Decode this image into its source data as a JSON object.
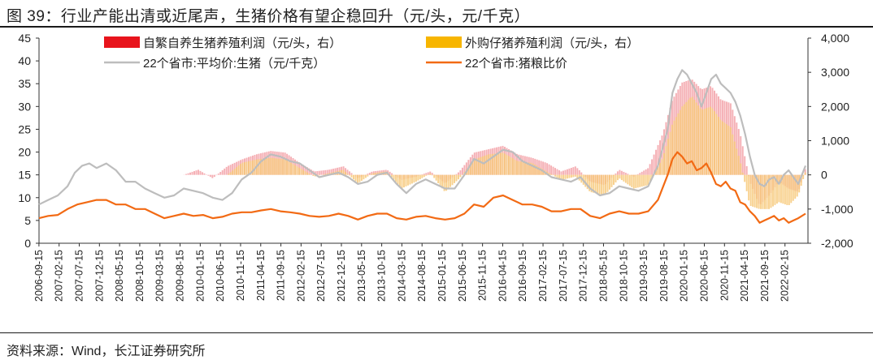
{
  "title": "图 39：行业产能出清或近尾声，生猪价格有望企稳回升（元/头，元/千克）",
  "source": "资料来源：Wind，长江证券研究所",
  "chart_data": {
    "type": "line+bar",
    "title": "行业产能出清或近尾声，生猪价格有望企稳回升",
    "left_axis": {
      "ylim": [
        0,
        45
      ],
      "ticks": [
        "0",
        "5",
        "10",
        "15",
        "20",
        "25",
        "30",
        "35",
        "40",
        "45"
      ],
      "units": "元/千克"
    },
    "right_axis": {
      "ylim": [
        -2000,
        4000
      ],
      "ticks": [
        "-2,000",
        "-1,000",
        "0",
        "1,000",
        "2,000",
        "3,000",
        "4,000"
      ],
      "units": "元/头"
    },
    "x_ticks": [
      "2006-09-15",
      "2007-02-15",
      "2007-07-15",
      "2007-12-15",
      "2008-05-15",
      "2008-10-15",
      "2009-03-15",
      "2009-08-15",
      "2010-01-15",
      "2010-06-15",
      "2010-11-15",
      "2011-04-15",
      "2011-09-15",
      "2012-02-15",
      "2012-07-15",
      "2012-12-15",
      "2013-05-15",
      "2013-10-15",
      "2014-03-15",
      "2014-08-15",
      "2015-01-15",
      "2015-06-15",
      "2015-11-15",
      "2016-04-15",
      "2016-09-15",
      "2017-02-15",
      "2017-07-15",
      "2017-12-15",
      "2018-05-15",
      "2018-10-15",
      "2019-03-15",
      "2019-08-15",
      "2020-01-15",
      "2020-06-15",
      "2020-11-15",
      "2021-04-15",
      "2021-09-15",
      "2022-02-15"
    ],
    "legend": [
      {
        "name": "自繁自养生猪养殖利润（元/头，右）",
        "color": "#e8141c",
        "kind": "bar"
      },
      {
        "name": "外购仔猪养殖利润（元/头，右）",
        "color": "#f7b500",
        "kind": "bar"
      },
      {
        "name": "22个省市:平均价:生猪（元/千克）",
        "color": "#bdbdbd",
        "kind": "line"
      },
      {
        "name": "22个省市:猪粮比价",
        "color": "#f26a14",
        "kind": "line"
      }
    ],
    "series": [
      {
        "name": "22个省市:平均价:生猪",
        "axis": "left",
        "x": [
          2006.71,
          2006.9,
          2007.1,
          2007.3,
          2007.45,
          2007.6,
          2007.75,
          2007.9,
          2008.1,
          2008.3,
          2008.5,
          2008.7,
          2008.9,
          2009.1,
          2009.3,
          2009.5,
          2009.7,
          2009.9,
          2010.1,
          2010.3,
          2010.5,
          2010.7,
          2010.9,
          2011.1,
          2011.3,
          2011.5,
          2011.7,
          2011.9,
          2012.1,
          2012.3,
          2012.5,
          2012.7,
          2012.9,
          2013.1,
          2013.3,
          2013.5,
          2013.7,
          2013.9,
          2014.1,
          2014.3,
          2014.5,
          2014.7,
          2014.9,
          2015.1,
          2015.3,
          2015.5,
          2015.7,
          2015.9,
          2016.1,
          2016.3,
          2016.5,
          2016.7,
          2016.9,
          2017.1,
          2017.3,
          2017.5,
          2017.7,
          2017.9,
          2018.1,
          2018.3,
          2018.5,
          2018.7,
          2018.9,
          2019.1,
          2019.3,
          2019.5,
          2019.7,
          2019.8,
          2019.9,
          2020.0,
          2020.1,
          2020.2,
          2020.3,
          2020.4,
          2020.5,
          2020.6,
          2020.7,
          2020.8,
          2020.9,
          2021.0,
          2021.1,
          2021.2,
          2021.3,
          2021.4,
          2021.5,
          2021.6,
          2021.7,
          2021.8,
          2021.9,
          2022.0,
          2022.1,
          2022.2,
          2022.3,
          2022.4,
          2022.55
        ],
        "values": [
          8.5,
          9.5,
          10.5,
          12.5,
          15.5,
          17.0,
          17.5,
          16.5,
          17.5,
          16.0,
          13.5,
          13.5,
          12.0,
          11.0,
          10.0,
          10.5,
          12.0,
          11.5,
          11.0,
          10.0,
          9.5,
          11.0,
          14.0,
          15.5,
          18.0,
          19.5,
          19.0,
          18.0,
          17.5,
          16.0,
          14.5,
          15.0,
          15.5,
          14.5,
          13.0,
          13.5,
          15.0,
          15.5,
          13.0,
          11.0,
          13.0,
          14.0,
          13.0,
          12.0,
          12.0,
          15.0,
          18.5,
          17.5,
          19.0,
          20.5,
          20.0,
          18.0,
          17.0,
          16.0,
          14.5,
          14.0,
          13.5,
          14.5,
          12.0,
          10.5,
          11.0,
          12.5,
          12.0,
          11.5,
          12.5,
          17.0,
          25.0,
          33.0,
          36.0,
          38.0,
          37.0,
          35.0,
          33.0,
          30.0,
          33.0,
          36.0,
          37.0,
          35.0,
          34.0,
          33.0,
          31.0,
          28.0,
          24.0,
          19.0,
          15.0,
          13.0,
          12.5,
          14.0,
          14.5,
          13.0,
          15.0,
          16.0,
          14.5,
          13.0,
          17.0
        ]
      },
      {
        "name": "22个省市:猪粮比价",
        "axis": "left",
        "x": [
          2006.71,
          2006.9,
          2007.1,
          2007.3,
          2007.5,
          2007.7,
          2007.9,
          2008.1,
          2008.3,
          2008.5,
          2008.7,
          2008.9,
          2009.1,
          2009.3,
          2009.5,
          2009.7,
          2009.9,
          2010.1,
          2010.3,
          2010.5,
          2010.7,
          2010.9,
          2011.1,
          2011.3,
          2011.5,
          2011.7,
          2011.9,
          2012.1,
          2012.3,
          2012.5,
          2012.7,
          2012.9,
          2013.1,
          2013.3,
          2013.5,
          2013.7,
          2013.9,
          2014.1,
          2014.3,
          2014.5,
          2014.7,
          2014.9,
          2015.1,
          2015.3,
          2015.5,
          2015.7,
          2015.9,
          2016.1,
          2016.3,
          2016.5,
          2016.7,
          2016.9,
          2017.1,
          2017.3,
          2017.5,
          2017.7,
          2017.9,
          2018.1,
          2018.3,
          2018.5,
          2018.7,
          2018.9,
          2019.1,
          2019.3,
          2019.5,
          2019.7,
          2019.8,
          2019.9,
          2020.0,
          2020.1,
          2020.2,
          2020.3,
          2020.4,
          2020.5,
          2020.6,
          2020.7,
          2020.8,
          2020.9,
          2021.0,
          2021.1,
          2021.2,
          2021.3,
          2021.4,
          2021.5,
          2021.6,
          2021.7,
          2021.8,
          2021.9,
          2022.0,
          2022.1,
          2022.2,
          2022.3,
          2022.4,
          2022.55
        ],
        "values": [
          5.5,
          6.0,
          6.2,
          7.5,
          8.5,
          9.0,
          9.5,
          9.5,
          8.5,
          8.5,
          7.5,
          7.5,
          6.5,
          5.5,
          6.0,
          6.5,
          6.0,
          6.2,
          5.5,
          5.8,
          6.5,
          6.8,
          6.8,
          7.2,
          7.5,
          7.0,
          6.8,
          6.5,
          6.0,
          5.8,
          6.0,
          6.5,
          6.0,
          5.2,
          6.0,
          6.5,
          6.5,
          5.5,
          5.2,
          5.8,
          6.0,
          5.5,
          5.2,
          5.5,
          6.5,
          8.5,
          8.0,
          10.0,
          10.5,
          9.5,
          8.5,
          8.5,
          8.0,
          7.0,
          7.0,
          7.5,
          7.5,
          6.0,
          5.5,
          6.5,
          7.0,
          6.5,
          6.5,
          7.0,
          9.5,
          15.0,
          18.5,
          20.0,
          19.0,
          17.5,
          18.0,
          16.0,
          16.5,
          17.5,
          15.5,
          13.0,
          12.5,
          13.5,
          12.0,
          11.5,
          9.0,
          8.5,
          7.0,
          6.0,
          4.5,
          5.0,
          5.5,
          6.0,
          5.0,
          5.5,
          4.5,
          5.0,
          5.5,
          6.5
        ]
      },
      {
        "name": "自繁自养生猪养殖利润",
        "axis": "right",
        "x": [
          2006.71,
          2007.0,
          2007.3,
          2007.6,
          2007.9,
          2008.2,
          2008.5,
          2008.8,
          2009.1,
          2009.4,
          2009.7,
          2010.0,
          2010.3,
          2010.6,
          2010.9,
          2011.2,
          2011.5,
          2011.8,
          2012.1,
          2012.4,
          2012.7,
          2013.0,
          2013.3,
          2013.6,
          2013.9,
          2014.2,
          2014.5,
          2014.8,
          2015.1,
          2015.4,
          2015.7,
          2016.0,
          2016.3,
          2016.6,
          2016.9,
          2017.2,
          2017.5,
          2017.8,
          2018.1,
          2018.4,
          2018.7,
          2019.0,
          2019.3,
          2019.6,
          2019.8,
          2020.0,
          2020.2,
          2020.4,
          2020.6,
          2020.8,
          2021.0,
          2021.2,
          2021.4,
          2021.6,
          2021.8,
          2022.0,
          2022.2,
          2022.4,
          2022.55
        ],
        "values": [
          0,
          0,
          0,
          0,
          0,
          0,
          0,
          0,
          0,
          0,
          0,
          150,
          -100,
          250,
          450,
          600,
          700,
          650,
          350,
          100,
          150,
          250,
          -100,
          100,
          150,
          -150,
          -50,
          100,
          -250,
          100,
          650,
          750,
          850,
          600,
          500,
          350,
          100,
          250,
          -200,
          -300,
          150,
          -50,
          200,
          1200,
          2200,
          2700,
          2800,
          2500,
          2600,
          2200,
          2100,
          1200,
          -200,
          -900,
          -600,
          -200,
          -400,
          -500,
          200
        ]
      },
      {
        "name": "外购仔猪养殖利润",
        "axis": "right",
        "x": [
          2006.71,
          2007.0,
          2007.3,
          2007.6,
          2007.9,
          2008.2,
          2008.5,
          2008.8,
          2009.1,
          2009.4,
          2009.7,
          2010.0,
          2010.3,
          2010.6,
          2010.9,
          2011.2,
          2011.5,
          2011.8,
          2012.1,
          2012.4,
          2012.7,
          2013.0,
          2013.3,
          2013.6,
          2013.9,
          2014.2,
          2014.5,
          2014.8,
          2015.1,
          2015.4,
          2015.7,
          2016.0,
          2016.3,
          2016.6,
          2016.9,
          2017.2,
          2017.5,
          2017.8,
          2018.1,
          2018.4,
          2018.7,
          2019.0,
          2019.3,
          2019.6,
          2019.8,
          2020.0,
          2020.2,
          2020.4,
          2020.6,
          2020.8,
          2021.0,
          2021.2,
          2021.4,
          2021.6,
          2021.8,
          2022.0,
          2022.2,
          2022.4,
          2022.55
        ],
        "values": [
          0,
          0,
          0,
          0,
          0,
          0,
          0,
          0,
          0,
          0,
          0,
          0,
          0,
          0,
          350,
          450,
          500,
          450,
          200,
          -50,
          50,
          150,
          -250,
          50,
          100,
          -400,
          -200,
          50,
          -500,
          -100,
          450,
          600,
          650,
          400,
          350,
          100,
          -150,
          -50,
          -500,
          -600,
          -100,
          -400,
          -300,
          500,
          1500,
          2000,
          2300,
          1900,
          2000,
          1600,
          1400,
          400,
          -900,
          -1000,
          -1000,
          -800,
          -900,
          -600,
          100
        ]
      }
    ]
  }
}
